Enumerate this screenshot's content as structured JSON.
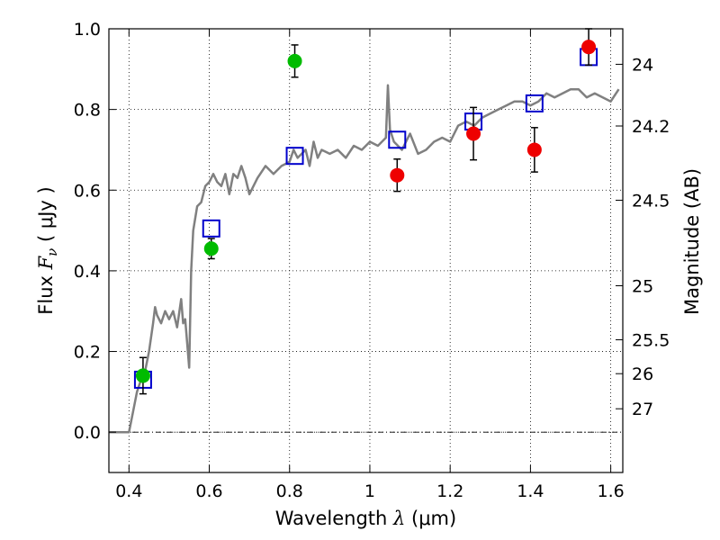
{
  "chart_data": {
    "type": "scatter",
    "xlabel": "Wavelength  λ (μm)",
    "ylabel": "Flux  F_ν  ( μJy )",
    "ylabel_right": "Magnitude (AB)",
    "xlim": [
      0.35,
      1.63
    ],
    "ylim": [
      -0.1,
      1.0
    ],
    "grid": true,
    "x_ticks": [
      {
        "value": 0.4,
        "label": "0.4"
      },
      {
        "value": 0.6,
        "label": "0.6"
      },
      {
        "value": 0.8,
        "label": "0.8"
      },
      {
        "value": 1.0,
        "label": "1"
      },
      {
        "value": 1.2,
        "label": "1.2"
      },
      {
        "value": 1.4,
        "label": "1.4"
      },
      {
        "value": 1.6,
        "label": "1.6"
      }
    ],
    "y_ticks": [
      {
        "value": 0.0,
        "label": "0.0"
      },
      {
        "value": 0.2,
        "label": "0.2"
      },
      {
        "value": 0.4,
        "label": "0.4"
      },
      {
        "value": 0.6,
        "label": "0.6"
      },
      {
        "value": 0.8,
        "label": "0.8"
      },
      {
        "value": 1.0,
        "label": "1.0"
      }
    ],
    "right_ticks": [
      {
        "flux": 0.912,
        "label": "24"
      },
      {
        "flux": 0.759,
        "label": "24.2"
      },
      {
        "flux": 0.575,
        "label": "24.5"
      },
      {
        "flux": 0.363,
        "label": "25"
      },
      {
        "flux": 0.229,
        "label": "25.5"
      },
      {
        "flux": 0.145,
        "label": "26"
      },
      {
        "flux": 0.058,
        "label": "27"
      }
    ],
    "colors": {
      "template": "#808080",
      "model": "#0000cc",
      "green": "#00bb00",
      "red": "#ee0000",
      "errorbar": "#000000"
    },
    "template_spectrum": [
      [
        0.35,
        0.0
      ],
      [
        0.4,
        0.0
      ],
      [
        0.41,
        0.05
      ],
      [
        0.42,
        0.1
      ],
      [
        0.43,
        0.13
      ],
      [
        0.44,
        0.15
      ],
      [
        0.45,
        0.2
      ],
      [
        0.46,
        0.27
      ],
      [
        0.465,
        0.31
      ],
      [
        0.47,
        0.29
      ],
      [
        0.48,
        0.27
      ],
      [
        0.49,
        0.3
      ],
      [
        0.5,
        0.28
      ],
      [
        0.51,
        0.3
      ],
      [
        0.52,
        0.26
      ],
      [
        0.53,
        0.33
      ],
      [
        0.535,
        0.27
      ],
      [
        0.54,
        0.28
      ],
      [
        0.545,
        0.22
      ],
      [
        0.55,
        0.16
      ],
      [
        0.555,
        0.4
      ],
      [
        0.56,
        0.5
      ],
      [
        0.57,
        0.56
      ],
      [
        0.58,
        0.57
      ],
      [
        0.59,
        0.61
      ],
      [
        0.6,
        0.62
      ],
      [
        0.61,
        0.64
      ],
      [
        0.62,
        0.62
      ],
      [
        0.63,
        0.61
      ],
      [
        0.64,
        0.64
      ],
      [
        0.65,
        0.59
      ],
      [
        0.66,
        0.64
      ],
      [
        0.67,
        0.63
      ],
      [
        0.68,
        0.66
      ],
      [
        0.69,
        0.63
      ],
      [
        0.7,
        0.59
      ],
      [
        0.72,
        0.63
      ],
      [
        0.74,
        0.66
      ],
      [
        0.76,
        0.64
      ],
      [
        0.78,
        0.66
      ],
      [
        0.8,
        0.67
      ],
      [
        0.81,
        0.7
      ],
      [
        0.82,
        0.68
      ],
      [
        0.84,
        0.7
      ],
      [
        0.85,
        0.66
      ],
      [
        0.86,
        0.72
      ],
      [
        0.87,
        0.68
      ],
      [
        0.88,
        0.7
      ],
      [
        0.9,
        0.69
      ],
      [
        0.92,
        0.7
      ],
      [
        0.94,
        0.68
      ],
      [
        0.96,
        0.71
      ],
      [
        0.98,
        0.7
      ],
      [
        1.0,
        0.72
      ],
      [
        1.02,
        0.71
      ],
      [
        1.04,
        0.73
      ],
      [
        1.045,
        0.86
      ],
      [
        1.05,
        0.75
      ],
      [
        1.06,
        0.72
      ],
      [
        1.08,
        0.7
      ],
      [
        1.1,
        0.74
      ],
      [
        1.12,
        0.69
      ],
      [
        1.14,
        0.7
      ],
      [
        1.16,
        0.72
      ],
      [
        1.18,
        0.73
      ],
      [
        1.2,
        0.72
      ],
      [
        1.22,
        0.76
      ],
      [
        1.24,
        0.77
      ],
      [
        1.26,
        0.76
      ],
      [
        1.28,
        0.78
      ],
      [
        1.3,
        0.79
      ],
      [
        1.32,
        0.8
      ],
      [
        1.34,
        0.81
      ],
      [
        1.36,
        0.82
      ],
      [
        1.38,
        0.82
      ],
      [
        1.4,
        0.81
      ],
      [
        1.42,
        0.82
      ],
      [
        1.44,
        0.84
      ],
      [
        1.46,
        0.83
      ],
      [
        1.48,
        0.84
      ],
      [
        1.5,
        0.85
      ],
      [
        1.52,
        0.85
      ],
      [
        1.54,
        0.83
      ],
      [
        1.56,
        0.84
      ],
      [
        1.58,
        0.83
      ],
      [
        1.6,
        0.82
      ],
      [
        1.62,
        0.85
      ]
    ],
    "model_points": [
      {
        "x": 0.435,
        "y": 0.13
      },
      {
        "x": 0.605,
        "y": 0.505
      },
      {
        "x": 0.813,
        "y": 0.685
      },
      {
        "x": 1.068,
        "y": 0.725
      },
      {
        "x": 1.258,
        "y": 0.77
      },
      {
        "x": 1.41,
        "y": 0.815
      },
      {
        "x": 1.545,
        "y": 0.93
      }
    ],
    "observed_points": [
      {
        "x": 0.435,
        "y": 0.14,
        "err": 0.045,
        "color": "green"
      },
      {
        "x": 0.605,
        "y": 0.455,
        "err": 0.025,
        "color": "green"
      },
      {
        "x": 0.813,
        "y": 0.92,
        "err": 0.04,
        "color": "green"
      },
      {
        "x": 1.068,
        "y": 0.637,
        "err": 0.04,
        "color": "red"
      },
      {
        "x": 1.258,
        "y": 0.74,
        "err": 0.065,
        "color": "red"
      },
      {
        "x": 1.41,
        "y": 0.7,
        "err": 0.055,
        "color": "red"
      },
      {
        "x": 1.545,
        "y": 0.955,
        "err": 0.045,
        "color": "red"
      }
    ]
  }
}
